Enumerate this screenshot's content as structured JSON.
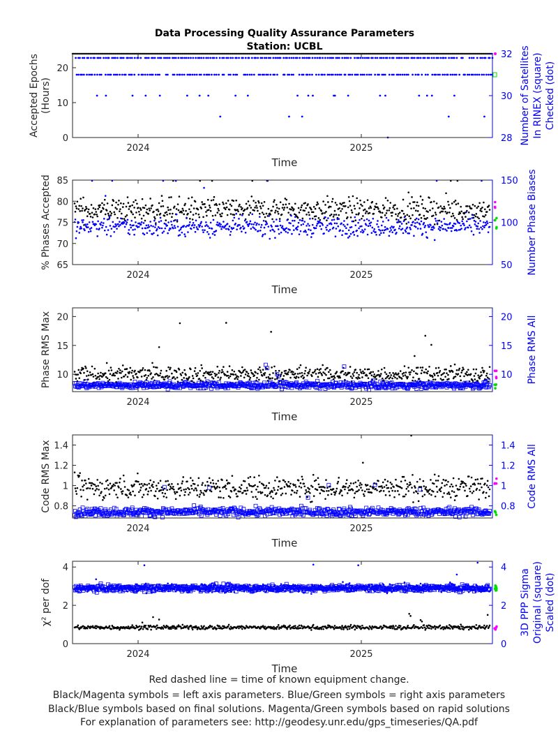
{
  "title_line1": "Data Processing Quality Assurance Parameters",
  "title_line2": "Station: UCBL",
  "footer_lines": [
    "Red dashed line = time of known equipment change.",
    "Black/Magenta symbols = left axis parameters. Blue/Green symbols = right axis parameters",
    "Black/Blue symbols based on final solutions.  Magenta/Green symbols based on rapid solutions",
    "For explanation of parameters see: http://geodesy.unr.edu/gps_timeseries/QA.pdf"
  ],
  "colors": {
    "left": "#000000",
    "right": "#0000ff",
    "rapid_left": "#ff00ff",
    "rapid_right": "#00dd00"
  },
  "chart_data": [
    {
      "type": "scatter",
      "xlabel": "Time",
      "xticks": [
        "2024",
        "2025"
      ],
      "ylabel_left": [
        "Accepted Epochs",
        "(Hours)"
      ],
      "ylabel_right": [
        "Number of Satellites",
        "In RINEX (square)",
        "Checked (dot)"
      ],
      "ylim_left": [
        0,
        24
      ],
      "yticks_left": [
        0,
        10,
        20
      ],
      "ylim_right": [
        28,
        32
      ],
      "yticks_right": [
        28,
        30,
        32
      ],
      "series": [
        {
          "axis": "left",
          "marker": "dot",
          "values": [
            24
          ],
          "note": "constant near 24 h"
        },
        {
          "axis": "right",
          "marker": "dot",
          "values": [
            31.8,
            31.0,
            30.5,
            30.0,
            29.5,
            29.0,
            28.0
          ]
        }
      ]
    },
    {
      "type": "scatter",
      "xlabel": "Time",
      "xticks": [
        "2024",
        "2025"
      ],
      "ylabel_left": [
        "% Phases Accepted"
      ],
      "ylabel_right": [
        "Number Phase Biases"
      ],
      "ylim_left": [
        65,
        85
      ],
      "yticks_left": [
        65,
        70,
        75,
        80,
        85
      ],
      "ylim_right": [
        50,
        150
      ],
      "yticks_right": [
        50,
        100,
        150
      ],
      "series": [
        {
          "axis": "left",
          "marker": "dot",
          "mean": 78,
          "spread": 2
        },
        {
          "axis": "right",
          "marker": "dot",
          "mean": 95,
          "spread": 8
        }
      ]
    },
    {
      "type": "scatter",
      "xlabel": "Time",
      "xticks": [
        "2024",
        "2025"
      ],
      "ylabel_left": [
        "Phase RMS Max"
      ],
      "ylabel_right": [
        "Phase RMS All"
      ],
      "ylim_left": [
        7,
        21.5
      ],
      "yticks_left": [
        10,
        15,
        20
      ],
      "ylim_right": [
        7,
        21.5
      ],
      "yticks_right": [
        10,
        15,
        20
      ],
      "series": [
        {
          "axis": "left",
          "marker": "dot",
          "mean": 10,
          "spread": 1
        },
        {
          "axis": "right",
          "marker": "square",
          "mean": 8.1,
          "spread": 0.4
        }
      ]
    },
    {
      "type": "scatter",
      "xlabel": "Time",
      "xticks": [
        "2024",
        "2025"
      ],
      "ylabel_left": [
        "Code RMS Max"
      ],
      "ylabel_right": [
        "Code RMS All"
      ],
      "ylim_left": [
        0.68,
        1.5
      ],
      "yticks_left": [
        0.8,
        1,
        1.2,
        1.4
      ],
      "ylim_right": [
        0.68,
        1.5
      ],
      "yticks_right": [
        0.8,
        1,
        1.2,
        1.4
      ],
      "series": [
        {
          "axis": "left",
          "marker": "dot",
          "mean": 0.98,
          "spread": 0.08
        },
        {
          "axis": "right",
          "marker": "square",
          "mean": 0.74,
          "spread": 0.03
        }
      ]
    },
    {
      "type": "scatter",
      "xlabel": "Time",
      "xticks": [
        "2024",
        "2025"
      ],
      "ylabel_left": [
        "χ² per dof"
      ],
      "ylabel_right": [
        "3D PPP Sigma",
        "Original (square)",
        "Scaled (dot)"
      ],
      "ylim_left": [
        0,
        4.3
      ],
      "yticks_left": [
        0,
        2,
        4
      ],
      "ylim_right": [
        0,
        4.3
      ],
      "yticks_right": [
        0,
        2,
        4
      ],
      "series": [
        {
          "axis": "left",
          "marker": "dot",
          "mean": 0.85,
          "spread": 0.08
        },
        {
          "axis": "right",
          "marker": "square",
          "mean": 2.9,
          "spread": 0.12
        },
        {
          "axis": "right",
          "marker": "dot",
          "mean": 2.9,
          "spread": 0.15
        }
      ]
    }
  ]
}
